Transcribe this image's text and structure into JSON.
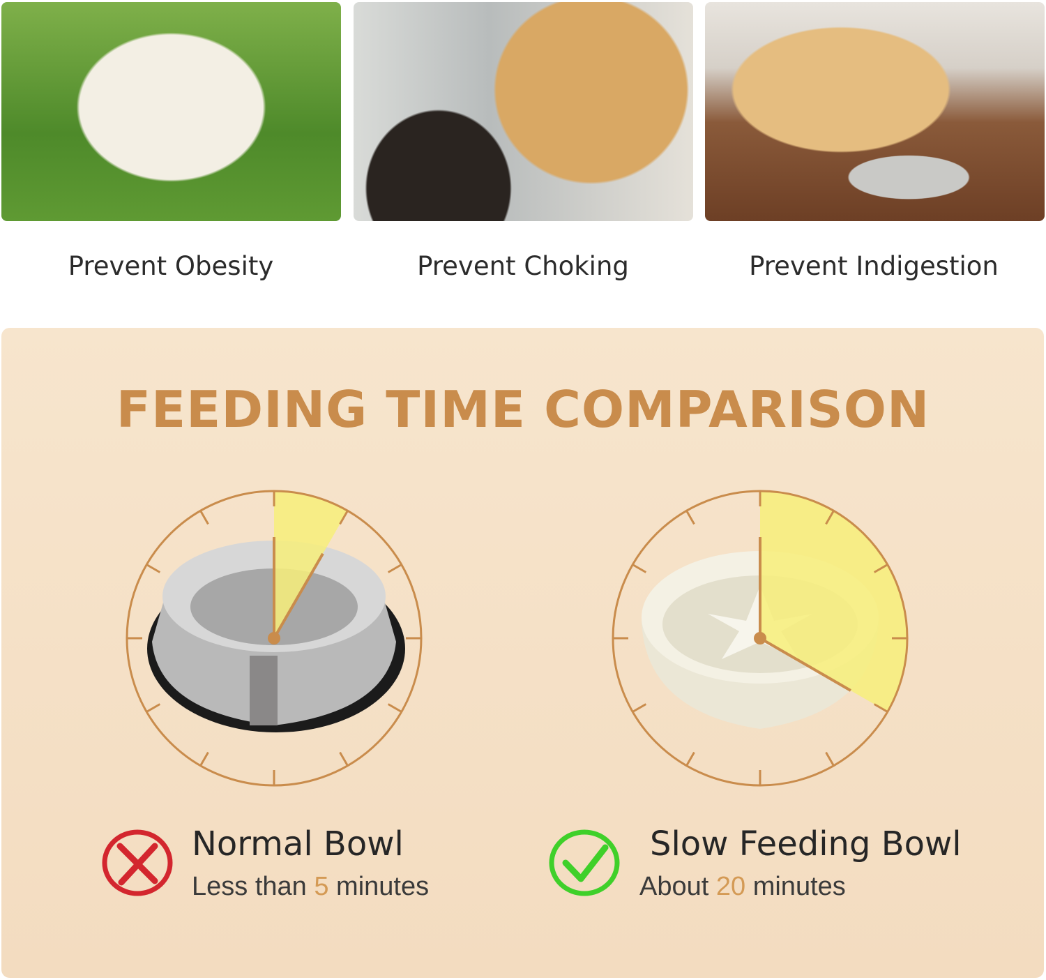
{
  "benefits": [
    {
      "label": "Prevent Obesity",
      "image": "pug-on-grass"
    },
    {
      "label": "Prevent Choking",
      "image": "golden-retriever-mouth-check"
    },
    {
      "label": "Prevent Indigestion",
      "image": "labrador-lying-by-bowl"
    }
  ],
  "comparison": {
    "title": "FEEDING TIME COMPARISON",
    "normal": {
      "name": "Normal Bowl",
      "prefix": "Less than ",
      "minutes": "5",
      "suffix": " minutes",
      "icon": "cross-icon",
      "icon_color": "#d3262e",
      "minutes_value": 5
    },
    "slow": {
      "name": "Slow Feeding Bowl",
      "prefix": "About ",
      "minutes": "20",
      "suffix": " minutes",
      "icon": "check-icon",
      "icon_color": "#3fd02a",
      "minutes_value": 20
    }
  },
  "colors": {
    "accent": "#c98c4c",
    "wedge": "#f7ee7a",
    "panel": "#f5e1c7"
  }
}
